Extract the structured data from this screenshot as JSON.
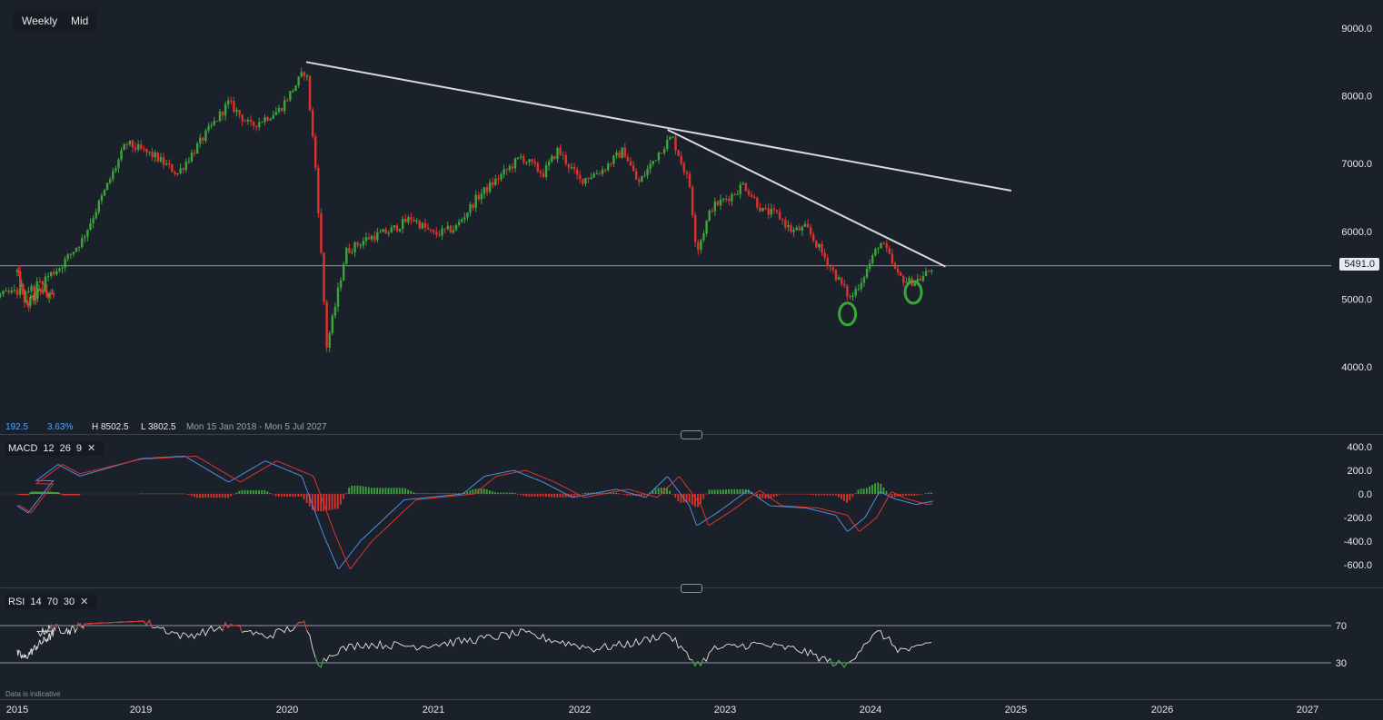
{
  "toolbar": {
    "timeframe": "Weekly",
    "price_mode": "Mid"
  },
  "info": {
    "change": "192.5",
    "change_pct": "3.63%",
    "high": "H 8502.5",
    "low": "L 3802.5",
    "range": "Mon 15 Jan 2018 - Mon 5 Jul 2027"
  },
  "current_price": "5491.0",
  "macd_label": {
    "name": "MACD",
    "fast": "12",
    "slow": "26",
    "signal": "9"
  },
  "rsi_label": {
    "name": "RSI",
    "period": "14",
    "upper": "70",
    "lower": "30"
  },
  "footer": "Data is indicative",
  "colors": {
    "background": "#1b212b",
    "up": "#3aa63a",
    "down": "#e0322d",
    "trendline": "#d9d9d9",
    "macd_line": "#4a90e2",
    "signal_line": "#e0322d",
    "rsi_line": "#e6e6e6",
    "marker": "#3aa63a"
  },
  "chart_data": {
    "type": "candlestick",
    "timeframe": "Weekly",
    "xticks": [
      "2015",
      "2019",
      "2020",
      "2021",
      "2022",
      "2023",
      "2024",
      "2025",
      "2026",
      "2027"
    ],
    "price_axis": {
      "ticks": [
        9000.0,
        8000.0,
        7000.0,
        6000.0,
        5000.0,
        4000.0
      ],
      "ylim": [
        3250,
        9250
      ]
    },
    "price_anchors": [
      {
        "x": 2018.04,
        "y": 5050
      },
      {
        "x": 2018.25,
        "y": 5150
      },
      {
        "x": 2018.45,
        "y": 5480
      },
      {
        "x": 2018.6,
        "y": 5880
      },
      {
        "x": 2018.75,
        "y": 6580
      },
      {
        "x": 2018.9,
        "y": 7300
      },
      {
        "x": 2019.1,
        "y": 7100
      },
      {
        "x": 2019.25,
        "y": 6850
      },
      {
        "x": 2019.45,
        "y": 7450
      },
      {
        "x": 2019.6,
        "y": 7900
      },
      {
        "x": 2019.75,
        "y": 7550
      },
      {
        "x": 2019.95,
        "y": 7800
      },
      {
        "x": 2020.13,
        "y": 8400
      },
      {
        "x": 2020.2,
        "y": 6800
      },
      {
        "x": 2020.27,
        "y": 4300
      },
      {
        "x": 2020.32,
        "y": 4800
      },
      {
        "x": 2020.4,
        "y": 5700
      },
      {
        "x": 2020.55,
        "y": 5900
      },
      {
        "x": 2020.7,
        "y": 6000
      },
      {
        "x": 2020.85,
        "y": 6200
      },
      {
        "x": 2021.0,
        "y": 5950
      },
      {
        "x": 2021.15,
        "y": 6050
      },
      {
        "x": 2021.3,
        "y": 6500
      },
      {
        "x": 2021.45,
        "y": 6800
      },
      {
        "x": 2021.6,
        "y": 7100
      },
      {
        "x": 2021.75,
        "y": 6850
      },
      {
        "x": 2021.85,
        "y": 7200
      },
      {
        "x": 2022.0,
        "y": 6750
      },
      {
        "x": 2022.15,
        "y": 6900
      },
      {
        "x": 2022.3,
        "y": 7200
      },
      {
        "x": 2022.4,
        "y": 6700
      },
      {
        "x": 2022.55,
        "y": 7200
      },
      {
        "x": 2022.63,
        "y": 7400
      },
      {
        "x": 2022.75,
        "y": 6700
      },
      {
        "x": 2022.8,
        "y": 5700
      },
      {
        "x": 2022.9,
        "y": 6350
      },
      {
        "x": 2023.05,
        "y": 6550
      },
      {
        "x": 2023.12,
        "y": 6700
      },
      {
        "x": 2023.25,
        "y": 6300
      },
      {
        "x": 2023.35,
        "y": 6250
      },
      {
        "x": 2023.45,
        "y": 6000
      },
      {
        "x": 2023.55,
        "y": 6050
      },
      {
        "x": 2023.65,
        "y": 5700
      },
      {
        "x": 2023.75,
        "y": 5350
      },
      {
        "x": 2023.85,
        "y": 5000
      },
      {
        "x": 2023.93,
        "y": 5300
      },
      {
        "x": 2024.0,
        "y": 5600
      },
      {
        "x": 2024.05,
        "y": 5850
      },
      {
        "x": 2024.1,
        "y": 5700
      },
      {
        "x": 2024.17,
        "y": 5350
      },
      {
        "x": 2024.25,
        "y": 5250
      },
      {
        "x": 2024.33,
        "y": 5300
      },
      {
        "x": 2024.38,
        "y": 5400
      },
      {
        "x": 2024.42,
        "y": 5491
      }
    ],
    "early_anchors": [
      {
        "x": 2015.0,
        "y": 5400
      },
      {
        "x": 2015.25,
        "y": 4900
      },
      {
        "x": 2015.5,
        "y": 5050
      },
      {
        "x": 2015.75,
        "y": 5150
      },
      {
        "x": 2016.0,
        "y": 5050
      }
    ],
    "trendlines": [
      {
        "from": {
          "x": 2020.13,
          "y": 8500
        },
        "to": {
          "x": 2024.95,
          "y": 6600
        }
      },
      {
        "from": {
          "x": 2022.6,
          "y": 7500
        },
        "to": {
          "x": 2024.5,
          "y": 5480
        }
      }
    ],
    "current_price": 5491.0,
    "markers": [
      {
        "shape": "ellipse",
        "x": 2023.83,
        "y": 4780
      },
      {
        "shape": "ellipse",
        "x": 2024.28,
        "y": 5100
      }
    ],
    "info_bar": {
      "high": 8502.5,
      "low": 3802.5
    },
    "macd": {
      "params": [
        12,
        26,
        9
      ],
      "ticks": [
        400.0,
        200.0,
        0.0,
        -200.0,
        -400.0,
        -600.0
      ],
      "macd_anchors": [
        {
          "x": 2015.0,
          "y": -100
        },
        {
          "x": 2015.3,
          "y": -160
        },
        {
          "x": 2015.9,
          "y": 80
        },
        {
          "x": 2016.4,
          "y": 250
        },
        {
          "x": 2016.8,
          "y": 150
        },
        {
          "x": 2019.3,
          "y": 320
        },
        {
          "x": 2019.6,
          "y": 100
        },
        {
          "x": 2019.85,
          "y": 280
        },
        {
          "x": 2020.1,
          "y": 150
        },
        {
          "x": 2020.25,
          "y": -350
        },
        {
          "x": 2020.35,
          "y": -640
        },
        {
          "x": 2020.5,
          "y": -400
        },
        {
          "x": 2020.8,
          "y": -50
        },
        {
          "x": 2021.2,
          "y": 0
        },
        {
          "x": 2021.35,
          "y": 150
        },
        {
          "x": 2021.55,
          "y": 200
        },
        {
          "x": 2021.75,
          "y": 100
        },
        {
          "x": 2021.95,
          "y": -30
        },
        {
          "x": 2022.25,
          "y": 40
        },
        {
          "x": 2022.45,
          "y": -30
        },
        {
          "x": 2022.6,
          "y": 150
        },
        {
          "x": 2022.75,
          "y": -100
        },
        {
          "x": 2022.8,
          "y": -270
        },
        {
          "x": 2022.95,
          "y": -150
        },
        {
          "x": 2023.15,
          "y": 30
        },
        {
          "x": 2023.3,
          "y": -100
        },
        {
          "x": 2023.55,
          "y": -120
        },
        {
          "x": 2023.75,
          "y": -180
        },
        {
          "x": 2023.83,
          "y": -320
        },
        {
          "x": 2023.95,
          "y": -200
        },
        {
          "x": 2024.05,
          "y": 20
        },
        {
          "x": 2024.15,
          "y": -40
        },
        {
          "x": 2024.3,
          "y": -90
        },
        {
          "x": 2024.42,
          "y": -60
        }
      ]
    },
    "rsi": {
      "params": [
        14,
        70,
        30
      ],
      "levels": [
        70,
        30
      ],
      "anchors": [
        {
          "x": 2015.0,
          "y": 40
        },
        {
          "x": 2015.2,
          "y": 35
        },
        {
          "x": 2015.6,
          "y": 50
        },
        {
          "x": 2015.9,
          "y": 58
        },
        {
          "x": 2016.3,
          "y": 68
        },
        {
          "x": 2016.6,
          "y": 64
        },
        {
          "x": 2016.9,
          "y": 72
        },
        {
          "x": 2019.0,
          "y": 75
        },
        {
          "x": 2019.3,
          "y": 58
        },
        {
          "x": 2019.6,
          "y": 70
        },
        {
          "x": 2019.85,
          "y": 58
        },
        {
          "x": 2020.12,
          "y": 72
        },
        {
          "x": 2020.22,
          "y": 28
        },
        {
          "x": 2020.32,
          "y": 42
        },
        {
          "x": 2020.5,
          "y": 50
        },
        {
          "x": 2020.9,
          "y": 48
        },
        {
          "x": 2021.3,
          "y": 55
        },
        {
          "x": 2021.6,
          "y": 62
        },
        {
          "x": 2021.8,
          "y": 55
        },
        {
          "x": 2022.1,
          "y": 45
        },
        {
          "x": 2022.4,
          "y": 52
        },
        {
          "x": 2022.6,
          "y": 62
        },
        {
          "x": 2022.75,
          "y": 35
        },
        {
          "x": 2022.82,
          "y": 28
        },
        {
          "x": 2022.92,
          "y": 45
        },
        {
          "x": 2023.2,
          "y": 50
        },
        {
          "x": 2023.5,
          "y": 44
        },
        {
          "x": 2023.7,
          "y": 32
        },
        {
          "x": 2023.82,
          "y": 26
        },
        {
          "x": 2023.95,
          "y": 52
        },
        {
          "x": 2024.05,
          "y": 63
        },
        {
          "x": 2024.18,
          "y": 44
        },
        {
          "x": 2024.3,
          "y": 44
        },
        {
          "x": 2024.42,
          "y": 54
        }
      ]
    }
  }
}
